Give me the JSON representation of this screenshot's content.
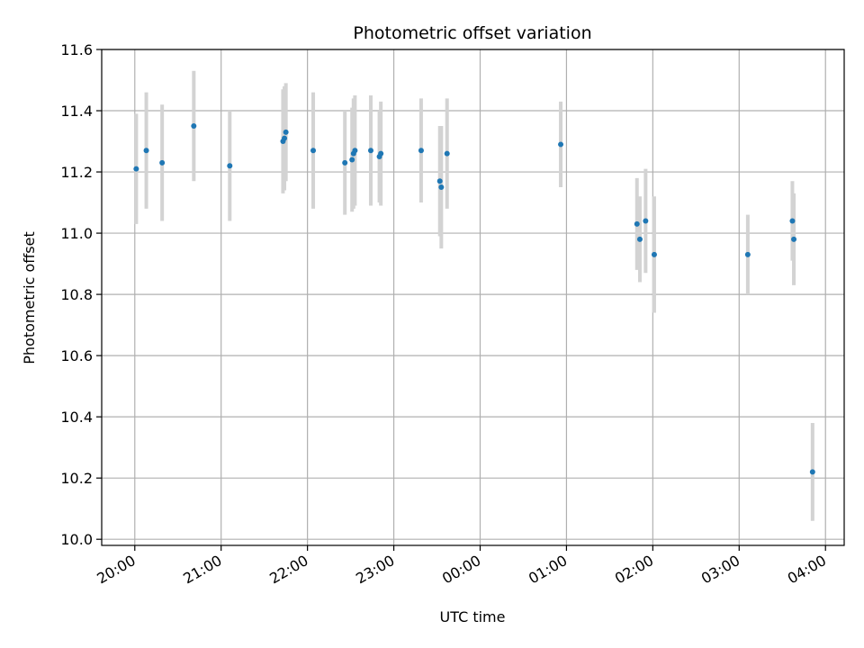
{
  "chart_data": {
    "type": "scatter",
    "title": "Photometric offset variation",
    "xlabel": "UTC time",
    "ylabel": "Photometric offset",
    "x_ticks": [
      "20:00",
      "21:00",
      "22:00",
      "23:00",
      "00:00",
      "01:00",
      "02:00",
      "03:00",
      "04:00"
    ],
    "y_ticks": [
      "10.0",
      "10.2",
      "10.4",
      "10.6",
      "10.8",
      "11.0",
      "11.2",
      "11.4",
      "11.6"
    ],
    "xlim": [
      "19:37",
      "04:13"
    ],
    "ylim": [
      9.98,
      11.6
    ],
    "grid": true,
    "colors": {
      "point": "#1f77b4",
      "errorbar": "#d3d3d3",
      "grid": "#b0b0b0"
    },
    "points": [
      {
        "x": "20:01",
        "y": 11.21,
        "err": 0.18
      },
      {
        "x": "20:08",
        "y": 11.27,
        "err": 0.19
      },
      {
        "x": "20:19",
        "y": 11.23,
        "err": 0.19
      },
      {
        "x": "20:41",
        "y": 11.35,
        "err": 0.18
      },
      {
        "x": "21:06",
        "y": 11.22,
        "err": 0.18
      },
      {
        "x": "21:43",
        "y": 11.3,
        "err": 0.17
      },
      {
        "x": "21:44",
        "y": 11.31,
        "err": 0.17
      },
      {
        "x": "21:45",
        "y": 11.33,
        "err": 0.16
      },
      {
        "x": "22:04",
        "y": 11.27,
        "err": 0.19
      },
      {
        "x": "22:26",
        "y": 11.23,
        "err": 0.17
      },
      {
        "x": "22:31",
        "y": 11.24,
        "err": 0.17
      },
      {
        "x": "22:32",
        "y": 11.26,
        "err": 0.18
      },
      {
        "x": "22:33",
        "y": 11.27,
        "err": 0.18
      },
      {
        "x": "22:44",
        "y": 11.27,
        "err": 0.18
      },
      {
        "x": "22:50",
        "y": 11.25,
        "err": 0.15
      },
      {
        "x": "22:51",
        "y": 11.26,
        "err": 0.17
      },
      {
        "x": "23:19",
        "y": 11.27,
        "err": 0.17
      },
      {
        "x": "23:32",
        "y": 11.17,
        "err": 0.18
      },
      {
        "x": "23:33",
        "y": 11.15,
        "err": 0.2
      },
      {
        "x": "23:37",
        "y": 11.26,
        "err": 0.18
      },
      {
        "x": "00:56",
        "y": 11.29,
        "err": 0.14
      },
      {
        "x": "01:49",
        "y": 11.03,
        "err": 0.15
      },
      {
        "x": "01:51",
        "y": 10.98,
        "err": 0.14
      },
      {
        "x": "01:55",
        "y": 11.04,
        "err": 0.17
      },
      {
        "x": "02:01",
        "y": 10.93,
        "err": 0.19
      },
      {
        "x": "03:06",
        "y": 10.93,
        "err": 0.13
      },
      {
        "x": "03:37",
        "y": 11.04,
        "err": 0.13
      },
      {
        "x": "03:38",
        "y": 10.98,
        "err": 0.15
      },
      {
        "x": "03:51",
        "y": 10.22,
        "err": 0.16
      }
    ]
  }
}
